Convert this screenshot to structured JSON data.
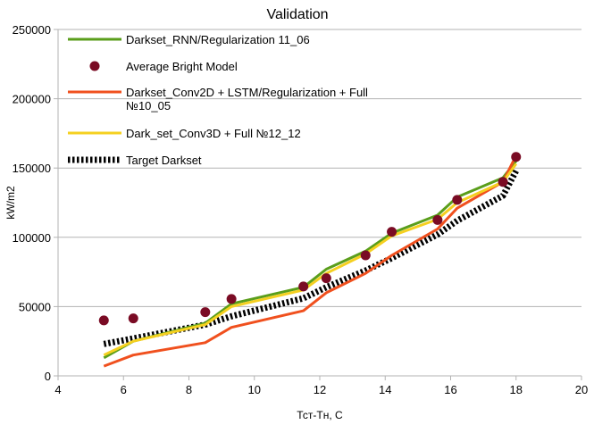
{
  "chart_data": {
    "type": "line",
    "title": "Validation",
    "xlabel": "Тст-Тн, С",
    "ylabel": "kW/m2",
    "xlim": [
      4,
      20
    ],
    "ylim": [
      0,
      250000
    ],
    "xticks": [
      4,
      6,
      8,
      10,
      12,
      14,
      16,
      18,
      20
    ],
    "yticks": [
      0,
      50000,
      100000,
      150000,
      200000,
      250000
    ],
    "grid": "horizontal",
    "legend_position": "top-left",
    "series": [
      {
        "name": "Darkset_RNN/Regularization 11_06",
        "kind": "line",
        "color": "#5a9e1b",
        "x": [
          5.4,
          6.3,
          8.5,
          9.3,
          11.5,
          12.2,
          13.4,
          14.2,
          15.6,
          16.2,
          17.6,
          18.0
        ],
        "y": [
          13000,
          25000,
          38000,
          52000,
          64000,
          77000,
          90000,
          103000,
          116000,
          129000,
          143000,
          155000
        ]
      },
      {
        "name": "Average Bright Model",
        "kind": "scatter",
        "color": "#7a0b24",
        "x": [
          5.4,
          6.3,
          8.5,
          9.3,
          11.5,
          12.2,
          13.4,
          14.2,
          15.6,
          16.2,
          17.6,
          18.0
        ],
        "y": [
          40000,
          41500,
          46000,
          55500,
          64500,
          70500,
          87000,
          104000,
          112500,
          127000,
          140000,
          158000
        ]
      },
      {
        "name": "Darkset_Conv2D + LSTM/Regularization + Full №10_05",
        "legend_lines": [
          "Darkset_Conv2D + LSTM/Regularization + Full",
          "№10_05"
        ],
        "kind": "line",
        "color": "#f0501e",
        "x": [
          5.4,
          6.3,
          8.5,
          9.3,
          11.5,
          12.2,
          13.4,
          14.2,
          15.6,
          16.2,
          17.6,
          18.0
        ],
        "y": [
          7000,
          15000,
          24000,
          35000,
          47000,
          60000,
          74000,
          87000,
          106000,
          121000,
          140000,
          159000
        ]
      },
      {
        "name": "Dark_set_Conv3D + Full №12_12",
        "kind": "line",
        "color": "#f5d020",
        "x": [
          5.4,
          6.3,
          8.5,
          9.3,
          11.5,
          12.2,
          13.4,
          14.2,
          15.6,
          16.2,
          17.6,
          18.0
        ],
        "y": [
          15000,
          25000,
          37000,
          50000,
          62000,
          74000,
          88000,
          101000,
          113000,
          125000,
          140000,
          153000
        ]
      },
      {
        "name": "Target Darkset",
        "kind": "dashed",
        "color": "#000000",
        "x": [
          5.4,
          6.3,
          8.5,
          9.3,
          11.5,
          12.2,
          13.4,
          14.2,
          15.6,
          16.2,
          17.6,
          18.0
        ],
        "y": [
          23000,
          27000,
          37000,
          43000,
          56000,
          64000,
          76000,
          85000,
          102000,
          112000,
          130000,
          148000
        ]
      }
    ]
  }
}
